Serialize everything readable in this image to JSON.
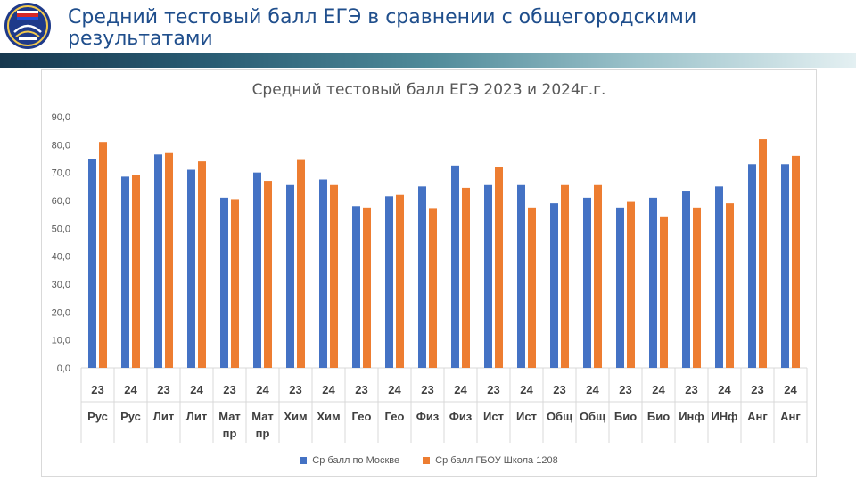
{
  "header": {
    "title": "Средний тестовый балл ЕГЭ в сравнении с общегородскими результатами"
  },
  "colors": {
    "moscow": "#4472c4",
    "school": "#ed7d31",
    "title": "#1f4e8c"
  },
  "icons": {
    "logo": "school-emblem-icon"
  },
  "chart_data": {
    "type": "bar",
    "title": "Средний тестовый балл ЕГЭ 2023 и 2024г.г.",
    "xlabel": "",
    "ylabel": "",
    "ylim": [
      0,
      90
    ],
    "yticks": [
      "0,0",
      "10,0",
      "20,0",
      "30,0",
      "40,0",
      "50,0",
      "60,0",
      "70,0",
      "80,0",
      "90,0"
    ],
    "grid": false,
    "legend_position": "bottom",
    "categories": [
      {
        "year": "23",
        "subject": [
          "Рус"
        ]
      },
      {
        "year": "24",
        "subject": [
          "Рус"
        ]
      },
      {
        "year": "23",
        "subject": [
          "Лит"
        ]
      },
      {
        "year": "24",
        "subject": [
          "Лит"
        ]
      },
      {
        "year": "23",
        "subject": [
          "Мат",
          "пр"
        ]
      },
      {
        "year": "24",
        "subject": [
          "Мат",
          "пр"
        ]
      },
      {
        "year": "23",
        "subject": [
          "Хим"
        ]
      },
      {
        "year": "24",
        "subject": [
          "Хим"
        ]
      },
      {
        "year": "23",
        "subject": [
          "Гео"
        ]
      },
      {
        "year": "24",
        "subject": [
          "Гео"
        ]
      },
      {
        "year": "23",
        "subject": [
          "Физ"
        ]
      },
      {
        "year": "24",
        "subject": [
          "Физ"
        ]
      },
      {
        "year": "23",
        "subject": [
          "Ист"
        ]
      },
      {
        "year": "24",
        "subject": [
          "Ист"
        ]
      },
      {
        "year": "23",
        "subject": [
          "Общ"
        ]
      },
      {
        "year": "24",
        "subject": [
          "Общ"
        ]
      },
      {
        "year": "23",
        "subject": [
          "Био"
        ]
      },
      {
        "year": "24",
        "subject": [
          "Био"
        ]
      },
      {
        "year": "23",
        "subject": [
          "Инф"
        ]
      },
      {
        "year": "24",
        "subject": [
          "ИНф"
        ]
      },
      {
        "year": "23",
        "subject": [
          "Анг"
        ]
      },
      {
        "year": "24",
        "subject": [
          "Анг"
        ]
      }
    ],
    "series": [
      {
        "name": "Ср балл по Москве",
        "values": [
          75,
          68.5,
          76.5,
          71,
          61,
          70,
          65.5,
          67.5,
          58,
          61.5,
          65,
          72.5,
          65.5,
          65.5,
          59,
          61,
          57.5,
          61,
          63.5,
          65,
          73,
          73
        ]
      },
      {
        "name": "Ср балл ГБОУ Школа 1208",
        "values": [
          81,
          69,
          77,
          74,
          60.5,
          67,
          74.5,
          65.5,
          57.5,
          62,
          57,
          64.5,
          72,
          57.5,
          65.5,
          65.5,
          59.5,
          54,
          57.5,
          59,
          82,
          76
        ]
      }
    ]
  }
}
